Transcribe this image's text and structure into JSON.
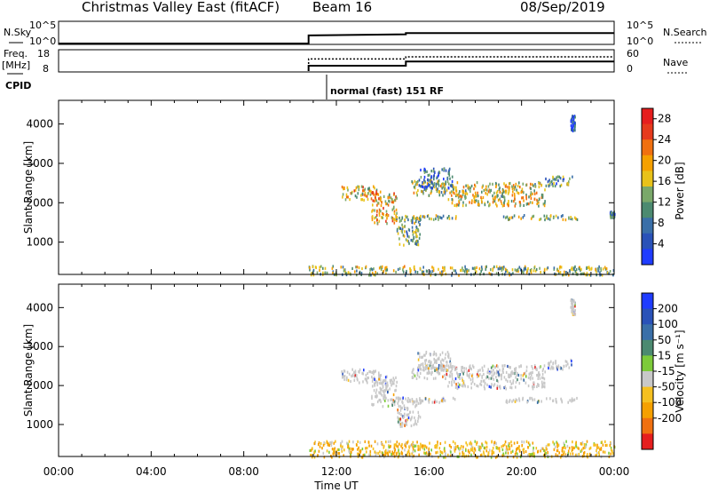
{
  "header": {
    "title": "Christmas Valley East (fitACF)",
    "beam": "Beam 16",
    "date": "08/Sep/2019"
  },
  "panels": {
    "nsky_label": "N.Sky",
    "nsky_ticks": [
      "10^5",
      "10^0"
    ],
    "nsearch_label": "N.Search",
    "nsearch_ticks": [
      "10^5",
      "10^0"
    ],
    "freq_label": "Freq.",
    "freq_unit": "[MHz]",
    "freq_ticks": [
      "18",
      "8"
    ],
    "nave_label": "Nave",
    "nave_ticks": [
      "60",
      "0"
    ],
    "cpid_label": "CPID",
    "cpid_text": "normal (fast) 151 RF"
  },
  "colors": {
    "power_scale": [
      "#1f3cff",
      "#2a52b8",
      "#3a6fa8",
      "#4c8a70",
      "#7aa86a",
      "#e8c21a",
      "#f5a000",
      "#f07010",
      "#e63a1c",
      "#e61e1e"
    ],
    "velocity_scale": [
      "#1f3cff",
      "#2a52b8",
      "#3a6fa8",
      "#4c8a70",
      "#7dcb3a",
      "#c8c8c8",
      "#f5c020",
      "#f5a000",
      "#f07010",
      "#e61e1e"
    ]
  },
  "chart_data": [
    {
      "type": "heatmap",
      "name_of_panel": "power",
      "xlabel": "Time UT",
      "ylabel": "Slant Range [km]",
      "x_ticks": [
        "00:00",
        "04:00",
        "08:00",
        "12:00",
        "16:00",
        "20:00",
        "00:00"
      ],
      "y_ticks": [
        1000,
        2000,
        3000,
        4000
      ],
      "xlim_hours": [
        0,
        24
      ],
      "ylim_km": [
        180,
        4600
      ],
      "colorbar": {
        "label": "Power [dB]",
        "ticks": [
          4,
          8,
          12,
          16,
          20,
          24,
          28
        ],
        "range": [
          0,
          30
        ]
      },
      "regions": [
        {
          "t": [
            10.8,
            24.0
          ],
          "r": [
            190,
            420
          ],
          "level": 0.45
        },
        {
          "t": [
            12.2,
            13.9
          ],
          "r": [
            2100,
            2450
          ],
          "level": 0.6
        },
        {
          "t": [
            13.5,
            14.6
          ],
          "r": [
            1500,
            2300
          ],
          "level": 0.65
        },
        {
          "t": [
            14.6,
            15.6
          ],
          "r": [
            950,
            1700
          ],
          "level": 0.35
        },
        {
          "t": [
            15.2,
            16.8
          ],
          "r": [
            2200,
            2600
          ],
          "level": 0.5
        },
        {
          "t": [
            16.8,
            21.0
          ],
          "r": [
            1950,
            2550
          ],
          "level": 0.55
        },
        {
          "t": [
            21.0,
            22.2
          ],
          "r": [
            2450,
            2700
          ],
          "level": 0.3
        },
        {
          "t": [
            14.5,
            17.2
          ],
          "r": [
            1600,
            1720
          ],
          "level": 0.4
        },
        {
          "t": [
            19.2,
            22.5
          ],
          "r": [
            1600,
            1720
          ],
          "level": 0.45
        },
        {
          "t": [
            15.5,
            17.0
          ],
          "r": [
            2400,
            2900
          ],
          "level": 0.2
        },
        {
          "t": [
            23.8,
            24.0
          ],
          "r": [
            1650,
            1800
          ],
          "level": 0.2
        },
        {
          "t": [
            22.1,
            22.3
          ],
          "r": [
            3850,
            4250
          ],
          "level": 0.1
        }
      ]
    },
    {
      "type": "heatmap",
      "name_of_panel": "velocity",
      "xlabel": "Time UT",
      "ylabel": "Slant Range [km]",
      "x_ticks": [
        "00:00",
        "04:00",
        "08:00",
        "12:00",
        "16:00",
        "20:00",
        "00:00"
      ],
      "y_ticks": [
        1000,
        2000,
        3000,
        4000
      ],
      "xlim_hours": [
        0,
        24
      ],
      "ylim_km": [
        180,
        4600
      ],
      "colorbar": {
        "label": "Velocity [m s⁻¹]",
        "ticks": [
          200,
          100,
          50,
          15,
          -15,
          -50,
          -100,
          -200
        ]
      },
      "regions": [
        {
          "t": [
            10.8,
            24.0
          ],
          "r": [
            190,
            600
          ],
          "level": 0.7
        },
        {
          "t": [
            12.2,
            13.9
          ],
          "r": [
            2100,
            2450
          ],
          "level": 0.5
        },
        {
          "t": [
            13.5,
            14.6
          ],
          "r": [
            1500,
            2300
          ],
          "level": 0.5
        },
        {
          "t": [
            14.6,
            15.6
          ],
          "r": [
            950,
            1700
          ],
          "level": 0.5
        },
        {
          "t": [
            15.2,
            16.8
          ],
          "r": [
            2200,
            2600
          ],
          "level": 0.5
        },
        {
          "t": [
            16.8,
            21.0
          ],
          "r": [
            1950,
            2550
          ],
          "level": 0.5
        },
        {
          "t": [
            21.0,
            22.2
          ],
          "r": [
            2450,
            2700
          ],
          "level": 0.5
        },
        {
          "t": [
            14.5,
            17.2
          ],
          "r": [
            1600,
            1720
          ],
          "level": 0.5
        },
        {
          "t": [
            19.2,
            22.5
          ],
          "r": [
            1600,
            1720
          ],
          "level": 0.5
        },
        {
          "t": [
            15.5,
            17.0
          ],
          "r": [
            2400,
            2900
          ],
          "level": 0.5
        },
        {
          "t": [
            22.1,
            22.3
          ],
          "r": [
            3850,
            4250
          ],
          "level": 0.5
        }
      ]
    },
    {
      "type": "line",
      "name_of_panel": "sky-noise",
      "x_hours": [
        0,
        10.8,
        10.8,
        15.0,
        15.0,
        24.0
      ],
      "y_level": [
        0,
        0,
        0.35,
        0.4,
        0.45,
        0.45
      ]
    },
    {
      "type": "line",
      "name_of_panel": "frequency-nave",
      "series": [
        {
          "name": "Freq.",
          "x_hours": [
            10.8,
            10.8,
            15.0,
            15.0,
            24.0
          ],
          "y": [
            8,
            10.5,
            10.5,
            12.5,
            12.5
          ]
        },
        {
          "name": "Nave",
          "x_hours": [
            10.8,
            10.8,
            15.0,
            15.0,
            24.0
          ],
          "y": [
            0,
            34,
            34,
            40,
            40
          ]
        }
      ]
    }
  ]
}
